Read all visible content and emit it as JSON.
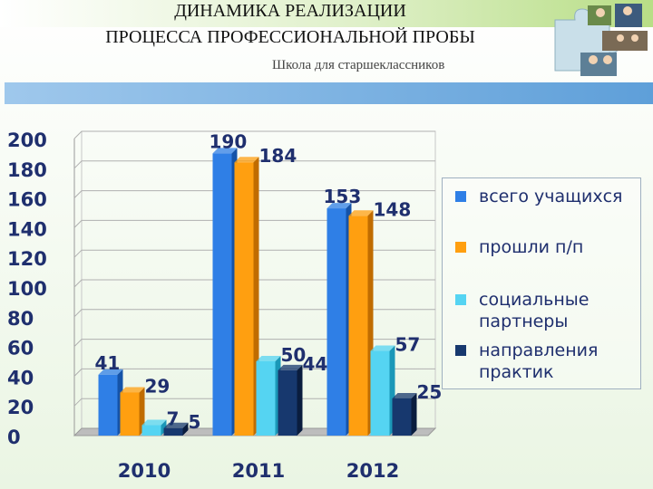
{
  "header": {
    "title_line1": "ДИНАМИКА РЕАЛИЗАЦИИ",
    "title_line2": "ПРОЦЕССА ПРОФЕССИОНАЛЬНОЙ ПРОБЫ",
    "subtitle": "Школа для старшеклассников"
  },
  "colors": {
    "series": [
      "#2f7fe6",
      "#ff9f10",
      "#55d4f2",
      "#17386e"
    ],
    "series_dark": [
      "#1553a8",
      "#c06c00",
      "#1b98b8",
      "#0a1d3e"
    ],
    "label": "#1f2f6e"
  },
  "chart_data": {
    "type": "bar",
    "categories": [
      "2010",
      "2011",
      "2012"
    ],
    "series": [
      {
        "name": "всего учащихся",
        "values": [
          41,
          190,
          153
        ]
      },
      {
        "name": "прошли п/п",
        "values": [
          29,
          184,
          148
        ]
      },
      {
        "name": "социальные партнеры",
        "values": [
          7,
          50,
          57
        ]
      },
      {
        "name": "направления практик",
        "values": [
          5,
          44,
          25
        ]
      }
    ],
    "ylim": [
      0,
      200
    ],
    "yticks": [
      "0",
      "20",
      "40",
      "60",
      "80",
      "100",
      "120",
      "140",
      "160",
      "180",
      "200"
    ],
    "grid": true,
    "legend_position": "right",
    "data_labels": true
  }
}
